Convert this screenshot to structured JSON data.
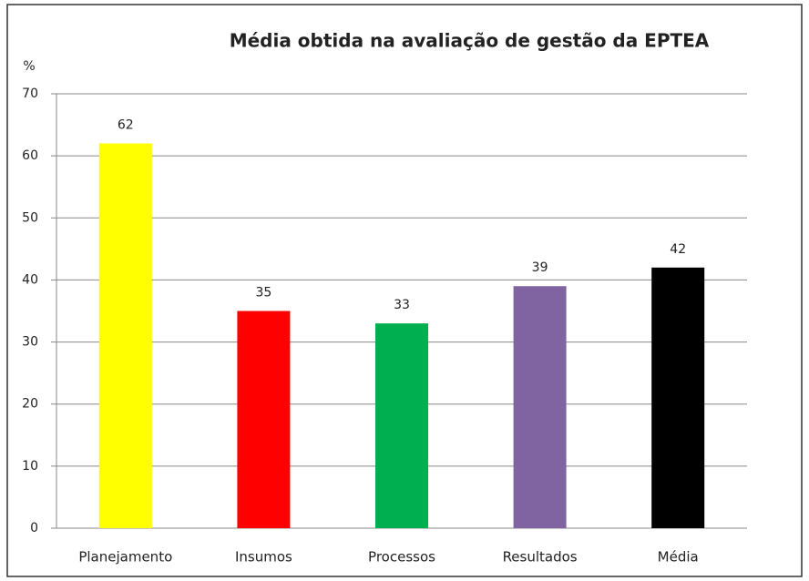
{
  "chart_data": {
    "type": "bar",
    "title": "Média obtida na avaliação de gestão da EPTEA",
    "ylabel": "%",
    "categories": [
      "Planejamento",
      "Insumos",
      "Processos",
      "Resultados",
      "Média"
    ],
    "values": [
      62,
      35,
      33,
      39,
      42
    ],
    "colors": [
      "#ffff00",
      "#ff0000",
      "#00b050",
      "#8064a2",
      "#000000"
    ],
    "ylim": [
      0,
      70
    ],
    "yticks": [
      0,
      10,
      20,
      30,
      40,
      50,
      60,
      70
    ],
    "grid": true
  }
}
